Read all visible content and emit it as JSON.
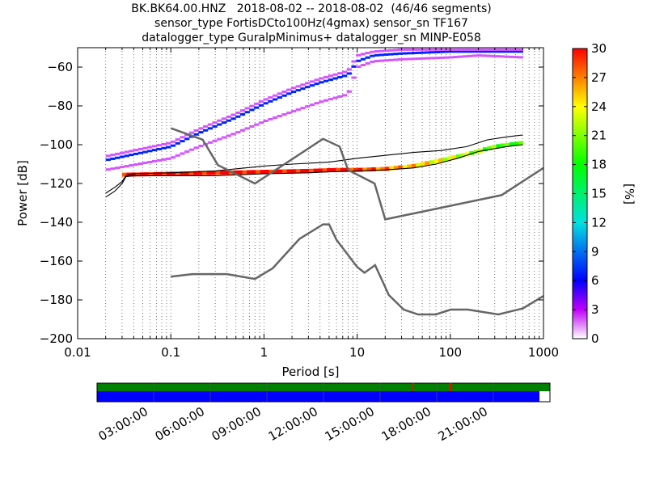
{
  "title_lines": [
    "BK.BK64.00.HNZ   2018-08-02 -- 2018-08-02  (46/46 segments)",
    "sensor_type FortisDCto100Hz(4gmax) sensor_sn TF167",
    "datalogger_type GuralpMinimus+ datalogger_sn MINP-E058"
  ],
  "chart_data": {
    "type": "heatmap",
    "xlabel": "Period [s]",
    "ylabel": "Power [dB]",
    "x_scale": "log",
    "xlim": [
      0.01,
      1000
    ],
    "ylim": [
      -200,
      -50
    ],
    "x_ticks": [
      0.01,
      0.1,
      1,
      10,
      100,
      1000
    ],
    "x_tick_labels": [
      "0.01",
      "0.1",
      "1",
      "10",
      "100",
      "1000"
    ],
    "y_ticks": [
      -200,
      -180,
      -160,
      -140,
      -120,
      -100,
      -80,
      -60
    ],
    "y_tick_labels": [
      "−200",
      "−180",
      "−160",
      "−140",
      "−120",
      "−100",
      "−80",
      "−60"
    ],
    "grid": "dotted vertical",
    "colorbar": {
      "label": "[%]",
      "range": [
        0,
        30
      ],
      "ticks": [
        0,
        3,
        6,
        9,
        12,
        15,
        18,
        21,
        24,
        27,
        30
      ],
      "tick_labels": [
        "0",
        "3",
        "6",
        "9",
        "12",
        "15",
        "18",
        "21",
        "24",
        "27",
        "30"
      ]
    },
    "noise_models": [
      {
        "id": "high_noise_model",
        "points": [
          [
            0.1,
            -91.5
          ],
          [
            0.22,
            -97.4
          ],
          [
            0.32,
            -110.5
          ],
          [
            0.8,
            -120
          ],
          [
            4.3,
            -97
          ],
          [
            6.5,
            -101
          ],
          [
            8,
            -113
          ],
          [
            15.4,
            -120
          ],
          [
            20,
            -138.5
          ],
          [
            354.8,
            -126
          ],
          [
            1000,
            -112
          ]
        ]
      },
      {
        "id": "low_noise_model",
        "points": [
          [
            0.1,
            -168
          ],
          [
            0.17,
            -166.7
          ],
          [
            0.4,
            -166.7
          ],
          [
            0.8,
            -169.2
          ],
          [
            1.24,
            -163.7
          ],
          [
            2.4,
            -148.6
          ],
          [
            4.3,
            -141.1
          ],
          [
            5,
            -141.1
          ],
          [
            6,
            -149
          ],
          [
            10,
            -163
          ],
          [
            12,
            -166
          ],
          [
            15.6,
            -162.1
          ],
          [
            21.9,
            -177.5
          ],
          [
            31.6,
            -185
          ],
          [
            45,
            -187.5
          ],
          [
            70,
            -187.5
          ],
          [
            101,
            -185
          ],
          [
            154,
            -185
          ],
          [
            328,
            -187.5
          ],
          [
            600,
            -184.4
          ],
          [
            1000,
            -178
          ]
        ]
      }
    ],
    "percentile_curves": [
      {
        "id": "upper_percentile",
        "points": [
          [
            0.02,
            -125
          ],
          [
            0.025,
            -122
          ],
          [
            0.03,
            -119
          ],
          [
            0.033,
            -116
          ],
          [
            0.04,
            -115
          ],
          [
            0.1,
            -114.5
          ],
          [
            0.3,
            -113.5
          ],
          [
            1,
            -111
          ],
          [
            2,
            -110
          ],
          [
            5,
            -109
          ],
          [
            10,
            -107
          ],
          [
            20,
            -105.5
          ],
          [
            40,
            -104
          ],
          [
            80,
            -103
          ],
          [
            150,
            -101
          ],
          [
            250,
            -97.5
          ],
          [
            400,
            -96
          ],
          [
            600,
            -95
          ]
        ]
      },
      {
        "id": "lower_percentile",
        "points": [
          [
            0.02,
            -127
          ],
          [
            0.025,
            -124
          ],
          [
            0.03,
            -120
          ],
          [
            0.033,
            -116.5
          ],
          [
            0.04,
            -116
          ],
          [
            0.1,
            -116
          ],
          [
            0.3,
            -116
          ],
          [
            1,
            -115
          ],
          [
            3,
            -114.5
          ],
          [
            5,
            -114
          ],
          [
            10,
            -113.5
          ],
          [
            20,
            -113
          ],
          [
            40,
            -112
          ],
          [
            70,
            -110
          ],
          [
            120,
            -107
          ],
          [
            200,
            -103.5
          ],
          [
            400,
            -101
          ],
          [
            600,
            -100
          ]
        ]
      }
    ],
    "density_bands": [
      {
        "id": "main_band",
        "color_percent": 30,
        "points": [
          [
            0.03,
            -115.5
          ],
          [
            0.1,
            -115
          ],
          [
            0.3,
            -114.5
          ],
          [
            1,
            -114
          ],
          [
            3,
            -113.5
          ],
          [
            6,
            -113
          ],
          [
            10,
            -113
          ],
          [
            20,
            -112.5
          ],
          [
            40,
            -111
          ],
          [
            80,
            -108
          ],
          [
            150,
            -105
          ],
          [
            300,
            -101
          ],
          [
            600,
            -99
          ]
        ]
      },
      {
        "id": "upper_blue_band",
        "color_percent": 7,
        "points": [
          [
            0.02,
            -108
          ],
          [
            0.1,
            -101
          ],
          [
            0.2,
            -94
          ],
          [
            0.5,
            -86
          ],
          [
            1,
            -79
          ],
          [
            2,
            -73
          ],
          [
            4,
            -68
          ],
          [
            8,
            -64
          ],
          [
            10,
            -57
          ],
          [
            15,
            -54
          ],
          [
            30,
            -53
          ],
          [
            100,
            -52
          ],
          [
            600,
            -52
          ]
        ]
      },
      {
        "id": "upper_purple_band",
        "color_percent": 2,
        "points": [
          [
            0.02,
            -106
          ],
          [
            0.1,
            -99
          ],
          [
            0.2,
            -92
          ],
          [
            0.5,
            -84
          ],
          [
            1,
            -77
          ],
          [
            2,
            -71
          ],
          [
            4,
            -66
          ],
          [
            8,
            -62
          ],
          [
            10,
            -54
          ],
          [
            15,
            -52
          ],
          [
            30,
            -51
          ],
          [
            100,
            -51
          ],
          [
            600,
            -51
          ]
        ]
      },
      {
        "id": "lower_purple_band",
        "color_percent": 2,
        "points": [
          [
            0.02,
            -113
          ],
          [
            0.1,
            -107
          ],
          [
            0.2,
            -101
          ],
          [
            0.5,
            -94
          ],
          [
            1,
            -88
          ],
          [
            2,
            -83
          ],
          [
            4,
            -78
          ],
          [
            8,
            -74
          ],
          [
            10,
            -60
          ],
          [
            15,
            -57
          ],
          [
            30,
            -56
          ],
          [
            100,
            -55
          ],
          [
            200,
            -54
          ],
          [
            600,
            -55
          ]
        ]
      }
    ],
    "timeline": {
      "tick_labels": [
        "03:00:00",
        "06:00:00",
        "09:00:00",
        "12:00:00",
        "15:00:00",
        "18:00:00",
        "21:00:00"
      ],
      "top_bar_color": "#008000",
      "bottom_bar_color": "#0000ff",
      "gap_marker_color": "#ff0000"
    }
  }
}
